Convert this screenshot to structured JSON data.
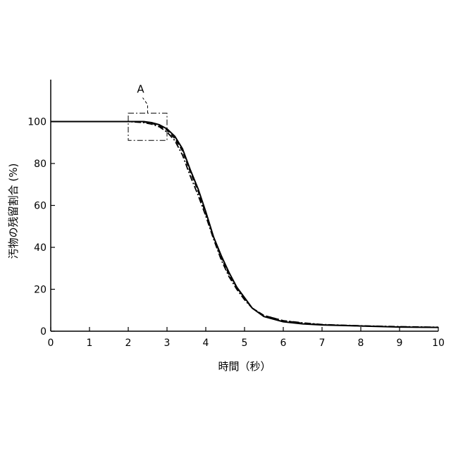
{
  "chart_data": {
    "type": "line",
    "title": "",
    "xlabel": "時間（秒）",
    "ylabel": "汚物の残留割合 (%)",
    "xlim": [
      0,
      10
    ],
    "ylim": [
      0,
      120
    ],
    "x_ticks": [
      "0",
      "1",
      "2",
      "3",
      "4",
      "5",
      "6",
      "7",
      "8",
      "9",
      "10"
    ],
    "y_ticks": [
      "0",
      "20",
      "40",
      "60",
      "80",
      "100"
    ],
    "grid": false,
    "legend": "none",
    "series": [
      {
        "style": "solid",
        "x": [
          0,
          2.0,
          2.4,
          2.6,
          2.8,
          3.0,
          3.2,
          3.4,
          3.6,
          3.8,
          4.0,
          4.2,
          4.4,
          4.6,
          4.8,
          5.0,
          5.2,
          5.5,
          6.0,
          6.5,
          7.0,
          8.0,
          9.0,
          10.0
        ],
        "y": [
          100,
          100,
          100,
          99.5,
          98.5,
          96.5,
          93,
          87,
          77,
          68,
          57,
          45,
          36,
          28,
          21,
          16,
          11,
          7,
          4.5,
          3.5,
          3,
          2.5,
          2,
          1.8
        ]
      },
      {
        "style": "dashed",
        "x": [
          0,
          2.0,
          2.4,
          2.6,
          2.8,
          3.0,
          3.2,
          3.4,
          3.6,
          3.8,
          4.0,
          4.2,
          4.4,
          4.6,
          4.8,
          5.0,
          5.2,
          5.5,
          6.0,
          6.5,
          7.0,
          8.0,
          9.0,
          10.0
        ],
        "y": [
          100,
          100,
          99.8,
          99.2,
          98,
          96,
          92,
          86,
          76,
          67,
          56,
          45,
          35,
          27,
          21,
          15.5,
          11,
          7.5,
          5,
          3.8,
          3.1,
          2.5,
          2.1,
          1.8
        ]
      },
      {
        "style": "dash-dot",
        "x": [
          0,
          2.0,
          2.4,
          2.6,
          2.8,
          3.0,
          3.2,
          3.4,
          3.6,
          3.8,
          4.0,
          4.2,
          4.4,
          4.6,
          4.8,
          5.0,
          5.2,
          5.5,
          6.0,
          6.5,
          7.0,
          8.0,
          9.0,
          10.0
        ],
        "y": [
          100,
          100,
          99.5,
          98.8,
          97.5,
          95,
          91,
          84,
          74,
          65,
          55,
          44,
          34,
          26,
          20,
          15,
          11,
          7.5,
          5,
          4,
          3.2,
          2.6,
          2.2,
          1.9
        ]
      }
    ],
    "annotations": [
      {
        "label": "A",
        "box": {
          "x": [
            2.0,
            3.0
          ],
          "y": [
            91,
            104
          ]
        }
      }
    ]
  }
}
